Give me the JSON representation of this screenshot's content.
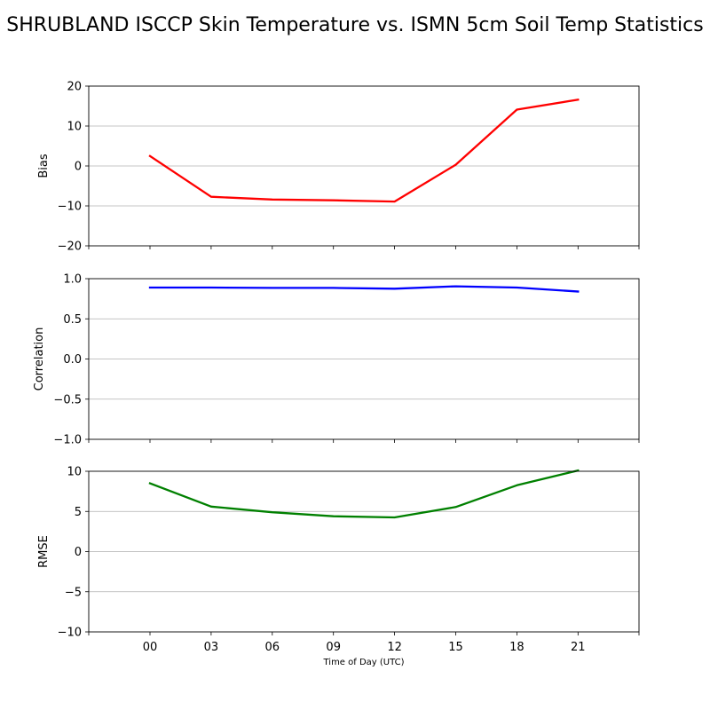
{
  "chart_data": {
    "title": "SHRUBLAND ISCCP Skin Temperature vs. ISMN 5cm Soil Temp Statistics",
    "xlabel": "Time of Day (UTC)",
    "categories": [
      "00",
      "03",
      "06",
      "09",
      "12",
      "15",
      "18",
      "21"
    ],
    "panels": [
      {
        "type": "line",
        "ylabel": "Bias",
        "ylim": [
          -20,
          20
        ],
        "yticks": [
          20,
          10,
          0,
          -10,
          -20
        ],
        "grid": true,
        "color": "#ff0000",
        "values": [
          2.5,
          -7.7,
          -8.4,
          -8.6,
          -8.9,
          0.3,
          14.1,
          16.6
        ]
      },
      {
        "type": "line",
        "ylabel": "Correlation",
        "ylim": [
          -1.0,
          1.0
        ],
        "yticks": [
          1.0,
          0.5,
          0.0,
          -0.5,
          -1.0
        ],
        "grid": true,
        "color": "#0000ff",
        "values": [
          0.89,
          0.89,
          0.885,
          0.885,
          0.875,
          0.905,
          0.89,
          0.84
        ]
      },
      {
        "type": "line",
        "ylabel": "RMSE",
        "ylim": [
          -10,
          10
        ],
        "yticks": [
          10,
          5,
          0,
          -5,
          -10
        ],
        "grid": true,
        "color": "#008000",
        "values": [
          8.5,
          5.6,
          4.9,
          4.4,
          4.25,
          5.55,
          8.25,
          10.1
        ]
      }
    ]
  }
}
